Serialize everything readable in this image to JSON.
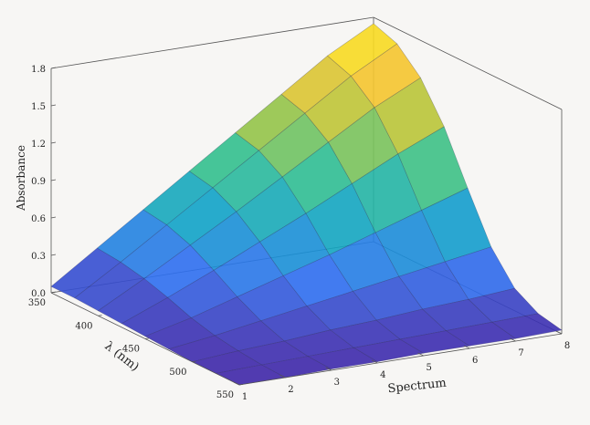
{
  "chart_data": {
    "type": "surface3d",
    "title": "",
    "xlabel": "Spectrum",
    "ylabel": "λ (nm)",
    "zlabel": "Absorbance",
    "x_ticks": [
      "1",
      "2",
      "3",
      "4",
      "5",
      "6",
      "7",
      "8"
    ],
    "y_ticks": [
      "350",
      "400",
      "450",
      "500",
      "550"
    ],
    "z_ticks": [
      "0.0",
      "0.3",
      "0.6",
      "0.9",
      "1.2",
      "1.5",
      "1.8"
    ],
    "xlim": [
      1,
      8
    ],
    "ylim": [
      350,
      550
    ],
    "zlim": [
      0,
      1.8
    ],
    "colormap": [
      "#3e26a8",
      "#2e6ff0",
      "#0fa3c8",
      "#31c08f",
      "#a9c53a",
      "#f5c52f",
      "#f9fb0e"
    ],
    "spectrum": [
      1,
      2,
      3,
      4,
      5,
      6,
      7,
      8
    ],
    "wavelength_nm": [
      350,
      375,
      400,
      425,
      450,
      475,
      500,
      525,
      550
    ],
    "absorbance": [
      [
        0.05,
        0.3,
        0.55,
        0.8,
        1.05,
        1.3,
        1.55,
        1.75
      ],
      [
        0.05,
        0.28,
        0.52,
        0.76,
        1.0,
        1.24,
        1.48,
        1.68
      ],
      [
        0.04,
        0.24,
        0.45,
        0.66,
        0.88,
        1.1,
        1.32,
        1.5
      ],
      [
        0.03,
        0.18,
        0.34,
        0.51,
        0.68,
        0.86,
        1.04,
        1.2
      ],
      [
        0.02,
        0.11,
        0.22,
        0.33,
        0.44,
        0.56,
        0.68,
        0.8
      ],
      [
        0.01,
        0.06,
        0.12,
        0.18,
        0.24,
        0.3,
        0.36,
        0.42
      ],
      [
        0.0,
        0.03,
        0.05,
        0.08,
        0.1,
        0.13,
        0.15,
        0.18
      ],
      [
        0.0,
        0.01,
        0.02,
        0.03,
        0.04,
        0.05,
        0.06,
        0.07
      ],
      [
        0.0,
        0.0,
        0.01,
        0.01,
        0.02,
        0.02,
        0.02,
        0.03
      ]
    ]
  }
}
